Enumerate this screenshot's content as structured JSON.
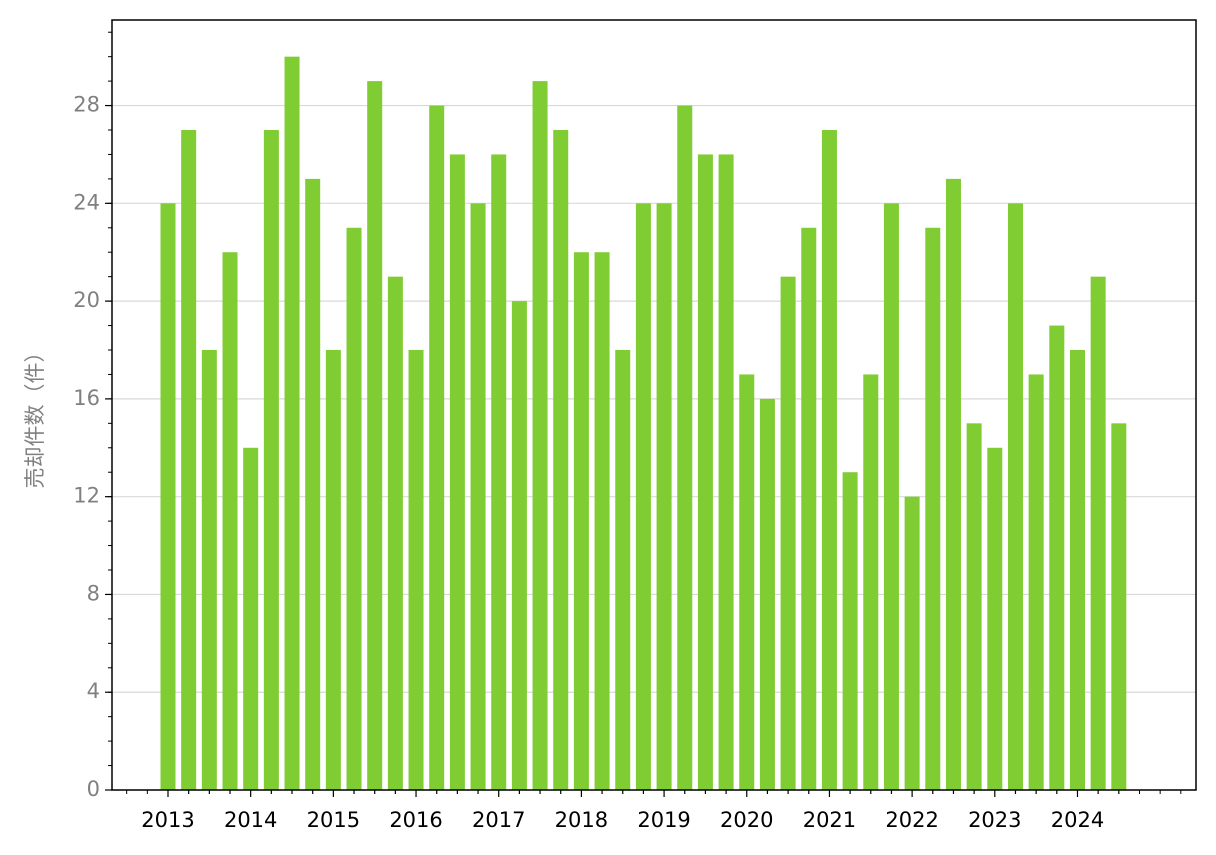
{
  "chart_data": {
    "type": "bar",
    "y_label": "売却件数（件）",
    "categories": [
      "2013",
      null,
      null,
      null,
      "2014",
      null,
      null,
      null,
      "2015",
      null,
      null,
      null,
      "2016",
      null,
      null,
      null,
      "2017",
      null,
      null,
      null,
      "2018",
      null,
      null,
      null,
      "2019",
      null,
      null,
      null,
      "2020",
      null,
      null,
      null,
      "2021",
      null,
      null,
      null,
      "2022",
      null,
      null,
      null,
      "2023",
      null,
      null,
      null,
      "2024",
      null,
      null
    ],
    "values": [
      24,
      27,
      18,
      22,
      14,
      27,
      30,
      25,
      18,
      23,
      29,
      21,
      18,
      28,
      26,
      24,
      26,
      20,
      29,
      27,
      22,
      22,
      18,
      24,
      24,
      28,
      26,
      26,
      17,
      16,
      21,
      23,
      27,
      13,
      17,
      24,
      12,
      23,
      25,
      15,
      14,
      24,
      17,
      19,
      18,
      21,
      15
    ],
    "color": "#7fcc33",
    "ylim": [
      0,
      31.5
    ],
    "yticks": [
      0,
      4,
      8,
      12,
      16,
      20,
      24,
      28
    ],
    "grid": true
  }
}
